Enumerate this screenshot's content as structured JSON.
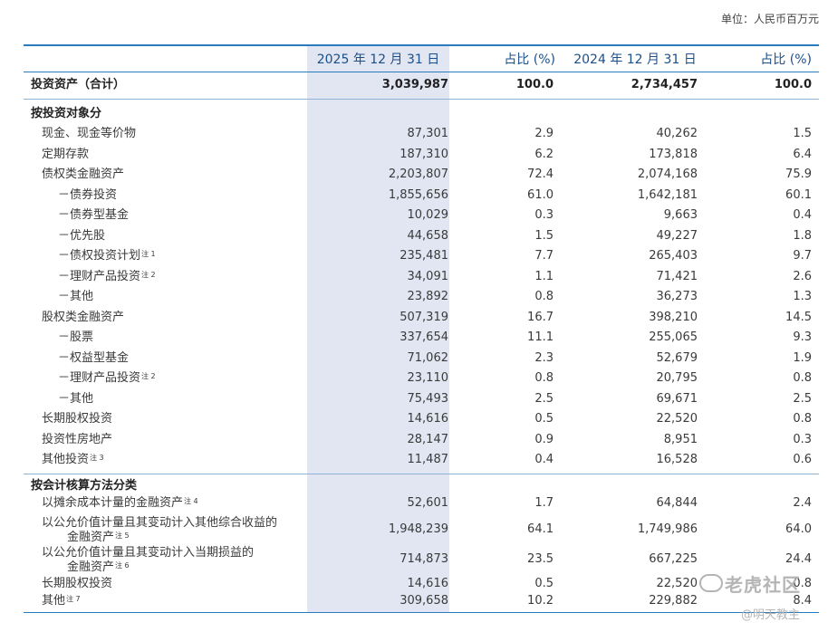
{
  "unit": "单位：人民币百万元",
  "header": {
    "c1": "2025 年 12 月 31 日",
    "c2": "占比 (%)",
    "c3": "2024 年 12 月 31 日",
    "c4": "占比 (%)"
  },
  "total": {
    "label": "投资资产（合计）",
    "v1": "3,039,987",
    "p1": "100.0",
    "v2": "2,734,457",
    "p2": "100.0"
  },
  "section1": {
    "title": "按投资对象分",
    "rows": [
      {
        "label": "现金、现金等价物",
        "v1": "87,301",
        "p1": "2.9",
        "v2": "40,262",
        "p2": "1.5"
      },
      {
        "label": "定期存款",
        "v1": "187,310",
        "p1": "6.2",
        "v2": "173,818",
        "p2": "6.4"
      },
      {
        "label": "债权类金融资产",
        "v1": "2,203,807",
        "p1": "72.4",
        "v2": "2,074,168",
        "p2": "75.9"
      },
      {
        "label": "－债券投资",
        "v1": "1,855,656",
        "p1": "61.0",
        "v2": "1,642,181",
        "p2": "60.1"
      },
      {
        "label": "－债券型基金",
        "v1": "10,029",
        "p1": "0.3",
        "v2": "9,663",
        "p2": "0.4"
      },
      {
        "label": "－优先股",
        "v1": "44,658",
        "p1": "1.5",
        "v2": "49,227",
        "p2": "1.8"
      },
      {
        "label": "－债权投资计划",
        "note": "注 1",
        "v1": "235,481",
        "p1": "7.7",
        "v2": "265,403",
        "p2": "9.7"
      },
      {
        "label": "－理财产品投资",
        "note": "注 2",
        "v1": "34,091",
        "p1": "1.1",
        "v2": "71,421",
        "p2": "2.6"
      },
      {
        "label": "－其他",
        "v1": "23,892",
        "p1": "0.8",
        "v2": "36,273",
        "p2": "1.3"
      },
      {
        "label": "股权类金融资产",
        "v1": "507,319",
        "p1": "16.7",
        "v2": "398,210",
        "p2": "14.5"
      },
      {
        "label": "－股票",
        "v1": "337,654",
        "p1": "11.1",
        "v2": "255,065",
        "p2": "9.3"
      },
      {
        "label": "－权益型基金",
        "v1": "71,062",
        "p1": "2.3",
        "v2": "52,679",
        "p2": "1.9"
      },
      {
        "label": "－理财产品投资",
        "note": "注 2",
        "v1": "23,110",
        "p1": "0.8",
        "v2": "20,795",
        "p2": "0.8"
      },
      {
        "label": "－其他",
        "v1": "75,493",
        "p1": "2.5",
        "v2": "69,671",
        "p2": "2.5"
      },
      {
        "label": "长期股权投资",
        "v1": "14,616",
        "p1": "0.5",
        "v2": "22,520",
        "p2": "0.8"
      },
      {
        "label": "投资性房地产",
        "v1": "28,147",
        "p1": "0.9",
        "v2": "8,951",
        "p2": "0.3"
      },
      {
        "label": "其他投资",
        "note": "注 3",
        "v1": "11,487",
        "p1": "0.4",
        "v2": "16,528",
        "p2": "0.6"
      }
    ]
  },
  "section2": {
    "title": "按会计核算方法分类",
    "rows": [
      {
        "label": "以摊余成本计量的金融资产",
        "note": "注 4",
        "v1": "52,601",
        "p1": "1.7",
        "v2": "64,844",
        "p2": "2.4"
      },
      {
        "label": "以公允价值计量且其变动计入其他综合收益的",
        "label2": "金融资产",
        "note": "注 5",
        "v1": "1,948,239",
        "p1": "64.1",
        "v2": "1,749,986",
        "p2": "64.0"
      },
      {
        "label": "以公允价值计量且其变动计入当期损益的",
        "label2": "金融资产",
        "note": "注 6",
        "v1": "714,873",
        "p1": "23.5",
        "v2": "667,225",
        "p2": "24.4"
      },
      {
        "label": "长期股权投资",
        "v1": "14,616",
        "p1": "0.5",
        "v2": "22,520",
        "p2": "0.8"
      },
      {
        "label": "其他",
        "note": "注 7",
        "v1": "309,658",
        "p1": "10.2",
        "v2": "229,882",
        "p2": "8.4"
      }
    ]
  },
  "watermark": {
    "brand": "老虎社区",
    "handle": "@明天教主"
  }
}
